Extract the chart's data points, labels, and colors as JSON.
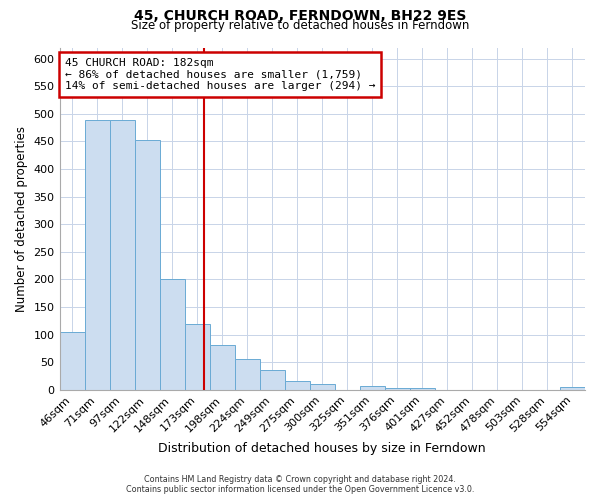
{
  "title": "45, CHURCH ROAD, FERNDOWN, BH22 9ES",
  "subtitle": "Size of property relative to detached houses in Ferndown",
  "xlabel": "Distribution of detached houses by size in Ferndown",
  "ylabel": "Number of detached properties",
  "bar_labels": [
    "46sqm",
    "71sqm",
    "97sqm",
    "122sqm",
    "148sqm",
    "173sqm",
    "198sqm",
    "224sqm",
    "249sqm",
    "275sqm",
    "300sqm",
    "325sqm",
    "351sqm",
    "376sqm",
    "401sqm",
    "427sqm",
    "452sqm",
    "478sqm",
    "503sqm",
    "528sqm",
    "554sqm"
  ],
  "bar_values": [
    105,
    488,
    488,
    452,
    201,
    120,
    82,
    56,
    36,
    16,
    10,
    0,
    7,
    3,
    4,
    0,
    0,
    0,
    0,
    0,
    5
  ],
  "bar_color": "#ccddf0",
  "bar_edge_color": "#6aaad4",
  "property_label": "45 CHURCH ROAD: 182sqm",
  "annotation_line1": "← 86% of detached houses are smaller (1,759)",
  "annotation_line2": "14% of semi-detached houses are larger (294) →",
  "vline_color": "#cc0000",
  "vline_x_index": 5.28,
  "annotation_box_color": "#ffffff",
  "annotation_box_edge_color": "#cc0000",
  "ylim": [
    0,
    620
  ],
  "yticks": [
    0,
    50,
    100,
    150,
    200,
    250,
    300,
    350,
    400,
    450,
    500,
    550,
    600
  ],
  "footer_line1": "Contains HM Land Registry data © Crown copyright and database right 2024.",
  "footer_line2": "Contains public sector information licensed under the Open Government Licence v3.0.",
  "background_color": "#ffffff",
  "grid_color": "#c8d4e8"
}
